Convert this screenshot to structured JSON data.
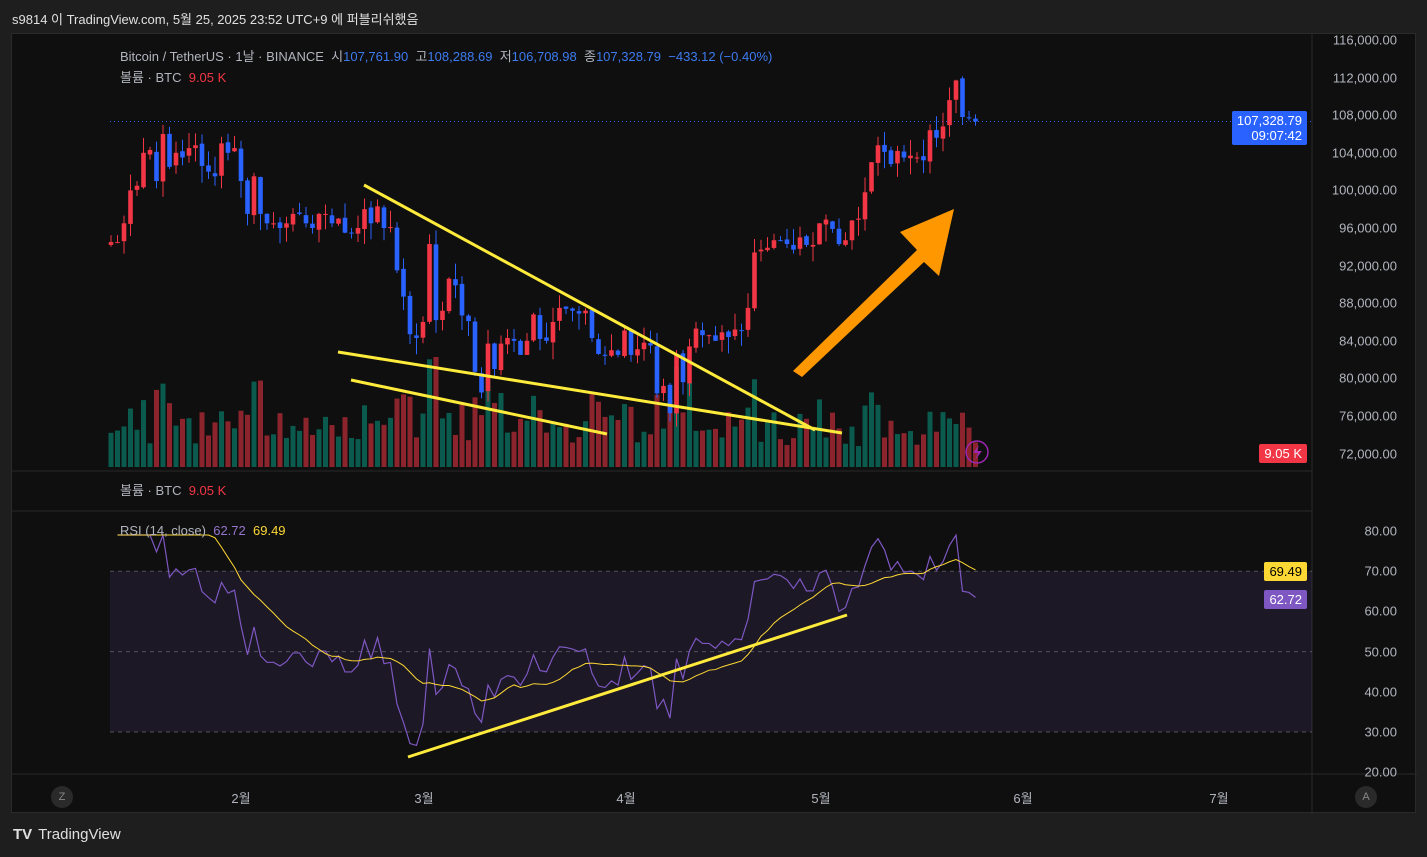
{
  "publish_line": "s9814 이 TradingView.com, 5월 25, 2025 23:52 UTC+9 에 퍼블리쉬했음",
  "legend": {
    "symbol": "Bitcoin / TetherUS · 1날 · BINANCE",
    "o_label": "시",
    "o": "107,761.90",
    "h_label": "고",
    "h": "108,288.69",
    "l_label": "저",
    "l": "106,708.98",
    "c_label": "종",
    "c": "107,328.79",
    "change": "−433.12 (−0.40%)"
  },
  "volume_legend": {
    "label": "볼륨 · BTC",
    "value": "9.05 K"
  },
  "volume_legend2": {
    "label": "볼륨 · BTC",
    "value": "9.05 K"
  },
  "rsi_legend": {
    "label": "RSI (14, close)",
    "rsi": "62.72",
    "ma": "69.49"
  },
  "price_axis": [
    "116,000.00",
    "112,000.00",
    "108,000.00",
    "104,000.00",
    "100,000.00",
    "96,000.00",
    "92,000.00",
    "88,000.00",
    "84,000.00",
    "80,000.00",
    "76,000.00",
    "72,000.00"
  ],
  "price_tag": {
    "price": "107,328.79",
    "countdown": "09:07:42"
  },
  "volume_tag": "9.05 K",
  "rsi_axis": [
    "80.00",
    "70.00",
    "60.00",
    "50.00",
    "40.00",
    "30.00",
    "20.00"
  ],
  "rsi_tags": {
    "ma": "69.49",
    "rsi": "62.72"
  },
  "time_axis": [
    "2월",
    "3월",
    "4월",
    "5월",
    "6월",
    "7월"
  ],
  "buttons": {
    "z": "Z",
    "a": "A"
  },
  "brand": "TradingView",
  "colors": {
    "up": "#089981",
    "down": "#f23645",
    "up_candle": "#2962ff",
    "candle_up": "#f23645",
    "candle_down": "#2962ff",
    "rsi": "#7e57c2",
    "rsi_ma": "#fdd835",
    "annotation": "#ffeb3b",
    "arrow": "#ff9800"
  },
  "chart_data": {
    "type": "candlestick",
    "interval": "1D",
    "start_date": "2025-01-12",
    "ylim": [
      72000,
      116000
    ],
    "closes_k": [
      94.5,
      94.5,
      96.5,
      100,
      100.5,
      104,
      104.3,
      101,
      106,
      102.5,
      104,
      103.5,
      104.5,
      104.8,
      102.6,
      102,
      101.5,
      105,
      104,
      104.5,
      101,
      97.5,
      101.5,
      97.5,
      96.5,
      96.5,
      96,
      96.5,
      97.5,
      97.5,
      96.5,
      96,
      97.5,
      97.5,
      96.5,
      97,
      95.5,
      95.5,
      96,
      98,
      96.5,
      98.3,
      96,
      96.1,
      91.5,
      88.7,
      84.7,
      84.3,
      86,
      94.3,
      86.2,
      87.2,
      90.6,
      89.9,
      86.7,
      86.1,
      80.7,
      78.5,
      83.7,
      81,
      83.7,
      84.3,
      84,
      82.5,
      84,
      86.8,
      84.2,
      84,
      86,
      87.5,
      87.4,
      87.2,
      86.9,
      87.2,
      84.3,
      82.6,
      82.4,
      83,
      82.5,
      85.1,
      82.5,
      83.1,
      83.8,
      83.5,
      78.4,
      79.2,
      76.3,
      82.6,
      79.6,
      83.4,
      85.3,
      84.6,
      84.6,
      84,
      84.9,
      84.4,
      85.2,
      85.1,
      87.5,
      93.4,
      93.7,
      93.9,
      94.7,
      94.6,
      94.3,
      93.7,
      95,
      94.2,
      94.2,
      96.5,
      96.9,
      95.9,
      94.3,
      94.7,
      96.8,
      97,
      99.8,
      103,
      104.8,
      104.1,
      102.8,
      104.2,
      103.5,
      103.7,
      103.5,
      103.2,
      106.4,
      105.6,
      106.8,
      109.6,
      111.7,
      107.8,
      107.7,
      107.33
    ],
    "rsi_length": 14,
    "rsi_ylim": [
      20,
      80
    ],
    "rsi_bands": [
      30,
      50,
      70
    ],
    "last_volume": "9.05K"
  }
}
